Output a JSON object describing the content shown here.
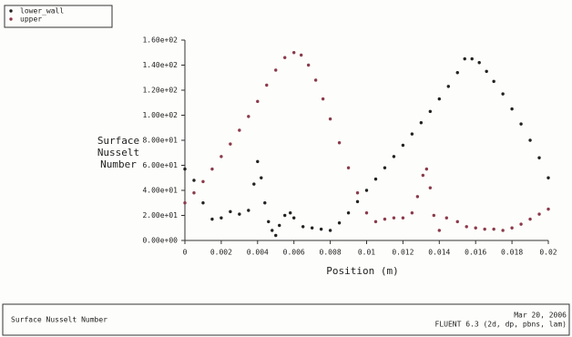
{
  "chart_data": {
    "type": "scatter",
    "xlabel": "Position (m)",
    "ylabel": [
      "Surface",
      "Nusselt",
      "Number"
    ],
    "footer_left": "Surface Nusselt Number",
    "footer_date": "Mar 20, 2006",
    "footer_info": "FLUENT 6.3 (2d, dp, pbns, lam)",
    "xlim": [
      0,
      0.02
    ],
    "xticks": [
      0,
      0.002,
      0.004,
      0.006,
      0.008,
      0.01,
      0.012,
      0.014,
      0.016,
      0.018,
      0.02
    ],
    "ylim": [
      0,
      160
    ],
    "yticks": [
      {
        "value": 0,
        "label": "0.00e+00"
      },
      {
        "value": 20,
        "label": "2.00e+01"
      },
      {
        "value": 40,
        "label": "4.00e+01"
      },
      {
        "value": 60,
        "label": "6.00e+01"
      },
      {
        "value": 80,
        "label": "8.00e+01"
      },
      {
        "value": 100,
        "label": "1.00e+02"
      },
      {
        "value": 120,
        "label": "1.20e+02"
      },
      {
        "value": 140,
        "label": "1.40e+02"
      },
      {
        "value": 160,
        "label": "1.60e+02"
      }
    ],
    "legend": "top-left",
    "series": [
      {
        "name": "lower_wall",
        "color": "#222222",
        "x": [
          0,
          0.0005,
          0.001,
          0.0015,
          0.002,
          0.0025,
          0.003,
          0.0035,
          0.0038,
          0.004,
          0.0042,
          0.0044,
          0.0046,
          0.0048,
          0.005,
          0.0052,
          0.0055,
          0.0058,
          0.006,
          0.0065,
          0.007,
          0.0075,
          0.008,
          0.0085,
          0.009,
          0.0095,
          0.01,
          0.0105,
          0.011,
          0.0115,
          0.012,
          0.0125,
          0.013,
          0.0135,
          0.014,
          0.0145,
          0.015,
          0.0154,
          0.0158,
          0.0162,
          0.0166,
          0.017,
          0.0175,
          0.018,
          0.0185,
          0.019,
          0.0195,
          0.02
        ],
        "values": [
          57,
          48,
          30,
          17,
          18,
          23,
          21,
          24,
          45,
          63,
          50,
          30,
          15,
          8,
          4,
          12,
          20,
          22,
          18,
          11,
          10,
          9,
          8,
          14,
          22,
          31,
          40,
          49,
          58,
          67,
          76,
          85,
          94,
          103,
          113,
          123,
          134,
          145,
          145,
          142,
          135,
          127,
          117,
          105,
          93,
          80,
          66,
          50
        ]
      },
      {
        "name": "upper",
        "color": "#8b3a4a",
        "x": [
          0,
          0.0005,
          0.001,
          0.0015,
          0.002,
          0.0025,
          0.003,
          0.0035,
          0.004,
          0.0045,
          0.005,
          0.0055,
          0.006,
          0.0064,
          0.0068,
          0.0072,
          0.0076,
          0.008,
          0.0085,
          0.009,
          0.0095,
          0.01,
          0.0105,
          0.011,
          0.0115,
          0.012,
          0.0125,
          0.0128,
          0.0131,
          0.0133,
          0.0135,
          0.0137,
          0.014,
          0.0144,
          0.015,
          0.0155,
          0.016,
          0.0165,
          0.017,
          0.0175,
          0.018,
          0.0185,
          0.019,
          0.0195,
          0.02
        ],
        "values": [
          30,
          38,
          47,
          57,
          67,
          77,
          88,
          99,
          111,
          124,
          136,
          146,
          150,
          148,
          140,
          128,
          113,
          97,
          78,
          58,
          38,
          22,
          15,
          17,
          18,
          18,
          22,
          35,
          52,
          57,
          42,
          20,
          8,
          18,
          15,
          11,
          10,
          9,
          9,
          8,
          10,
          13,
          17,
          21,
          25
        ]
      }
    ]
  }
}
